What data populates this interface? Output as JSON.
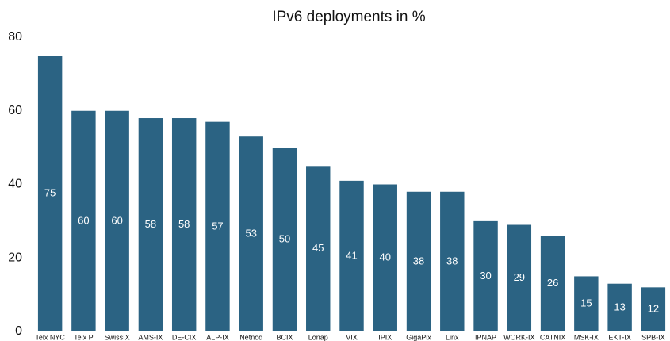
{
  "chart_data": {
    "type": "bar",
    "title": "IPv6 deployments in %",
    "categories": [
      "Telx NYC",
      "Telx P",
      "SwissIX",
      "AMS-IX",
      "DE-CIX",
      "ALP-IX",
      "Netnod",
      "BCIX",
      "Lonap",
      "VIX",
      "IPIX",
      "GigaPix",
      "Linx",
      "IPNAP",
      "WORK-IX",
      "CATNIX",
      "MSK-IX",
      "EKT-IX",
      "SPB-IX"
    ],
    "values": [
      75,
      60,
      60,
      58,
      58,
      57,
      53,
      50,
      45,
      41,
      40,
      38,
      38,
      30,
      29,
      26,
      15,
      13,
      12
    ],
    "color": "#2b6383",
    "ylim": [
      0,
      80
    ],
    "yticks": [
      0,
      20,
      40,
      60,
      80
    ],
    "grid": false
  }
}
